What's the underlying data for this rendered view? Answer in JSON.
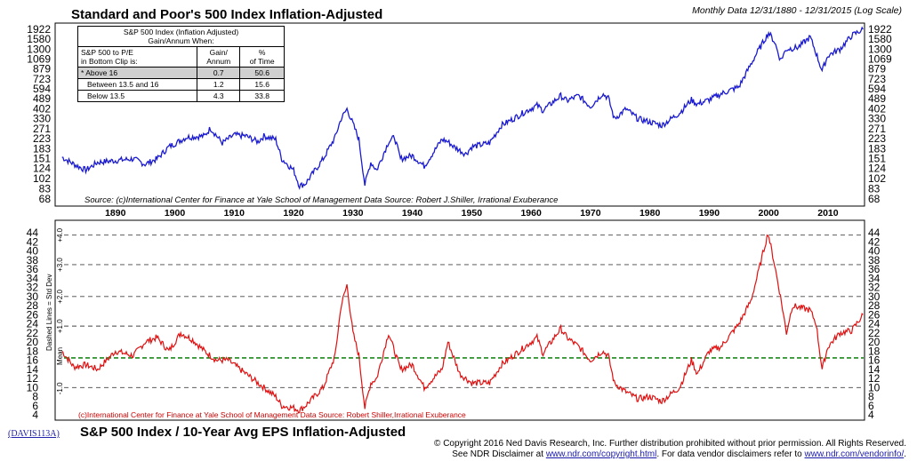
{
  "top": {
    "title": "Standard and Poor's 500 Index Inflation-Adjusted",
    "subtitle": "Monthly Data 12/31/1880 - 12/31/2015 (Log Scale)",
    "source": "Source: (c)International Center for Finance at Yale School of Management Data Source: Robert J.Shiller, Irrational Exuberance",
    "y_ticks": [
      "1922",
      "1580",
      "1300",
      "1069",
      "879",
      "723",
      "594",
      "489",
      "402",
      "330",
      "271",
      "223",
      "183",
      "151",
      "124",
      "102",
      "83",
      "68"
    ],
    "table": {
      "title_line1": "S&P 500 Index (Inflation Adjusted)",
      "title_line2": "Gain/Annum When:",
      "col1_line1": "S&P 500 to P/E",
      "col1_line2": "in Bottom Clip is:",
      "col2_line1": "Gain/",
      "col2_line2": "Annum",
      "col3_line1": "%",
      "col3_line2": "of Time",
      "rows": [
        {
          "label": "* Above 16",
          "gain": "0.7",
          "pct": "50.6"
        },
        {
          "label": "Between 13.5 and 16",
          "gain": "1.2",
          "pct": "15.6"
        },
        {
          "label": "Below 13.5",
          "gain": "4.3",
          "pct": "33.8"
        }
      ]
    }
  },
  "x_ticks": [
    "1890",
    "1900",
    "1910",
    "1920",
    "1930",
    "1940",
    "1950",
    "1960",
    "1970",
    "1980",
    "1990",
    "2000",
    "2010"
  ],
  "bottom": {
    "source": "(c)International Center for Finance at Yale School of Management Data Source: Robert Shiller,Irrational Exuberance",
    "y_ticks": [
      "44",
      "42",
      "40",
      "38",
      "36",
      "34",
      "32",
      "30",
      "28",
      "26",
      "24",
      "22",
      "20",
      "18",
      "16",
      "14",
      "12",
      "10",
      "8",
      "6",
      "4"
    ],
    "y_axis_label": "Dashed Lines = Std Dev",
    "band_labels": [
      "+4.0",
      "+3.0",
      "+2.0",
      "+1.0",
      "Mean",
      "-1.0"
    ],
    "title": "S&P 500 Index / 10-Year Avg EPS Inflation-Adjusted",
    "code": "(DAVIS113A)"
  },
  "footer": {
    "copyright": "© Copyright 2016 Ned Davis Research, Inc.  Further distribution prohibited without prior permission.  All Rights Reserved.",
    "disclaimer_pre": "See NDR Disclaimer at ",
    "link1": "www.ndr.com/copyright.html",
    "disclaimer_mid": ". For data vendor disclaimers refer to ",
    "link2": "www.ndr.com/vendorinfo/",
    "disclaimer_end": "."
  },
  "colors": {
    "price": "#1a1ad0",
    "pe": "#e01010",
    "mean": "#1a8a1a",
    "dash": "#444444"
  },
  "chart_data": [
    {
      "type": "line",
      "title": "Standard and Poor's 500 Index Inflation-Adjusted",
      "scale": "log",
      "ylim": [
        68,
        1922
      ],
      "xlim": [
        1880,
        2016
      ],
      "series": [
        {
          "x": [
            1881,
            1883,
            1885,
            1887,
            1890,
            1893,
            1895,
            1897,
            1899,
            1902,
            1905,
            1906,
            1908,
            1910,
            1912,
            1914,
            1915,
            1917,
            1918,
            1920,
            1921,
            1922,
            1925,
            1927,
            1928,
            1929,
            1930,
            1931,
            1932,
            1933,
            1934,
            1936,
            1937,
            1938,
            1940,
            1942,
            1945,
            1946,
            1947,
            1949,
            1950,
            1953,
            1955,
            1957,
            1959,
            1961,
            1962,
            1965,
            1966,
            1968,
            1970,
            1972,
            1973,
            1974,
            1976,
            1978,
            1980,
            1982,
            1985,
            1987,
            1988,
            1990,
            1992,
            1995,
            1998,
            2000,
            2001,
            2002,
            2003,
            2005,
            2007,
            2008,
            2009,
            2010,
            2012,
            2014,
            2015.9
          ],
          "values": [
            155,
            135,
            120,
            140,
            145,
            150,
            135,
            150,
            190,
            230,
            235,
            275,
            205,
            240,
            235,
            210,
            235,
            220,
            150,
            120,
            88,
            92,
            150,
            230,
            330,
            400,
            300,
            220,
            90,
            140,
            120,
            210,
            230,
            150,
            160,
            130,
            220,
            210,
            190,
            165,
            190,
            205,
            290,
            330,
            380,
            430,
            390,
            520,
            470,
            520,
            420,
            540,
            500,
            330,
            400,
            330,
            310,
            290,
            370,
            480,
            440,
            480,
            540,
            620,
            1200,
            1800,
            1500,
            1050,
            1300,
            1350,
            1650,
            1200,
            850,
            1150,
            1300,
            1700,
            1922
          ]
        }
      ]
    },
    {
      "type": "line",
      "title": "S&P 500 Index / 10-Year Avg EPS Inflation-Adjusted",
      "ylim": [
        4,
        45
      ],
      "xlim": [
        1880,
        2016
      ],
      "bands": [
        {
          "label": "+4.0",
          "value": 43.5
        },
        {
          "label": "+3.0",
          "value": 37
        },
        {
          "label": "+2.0",
          "value": 30
        },
        {
          "label": "+1.0",
          "value": 23.5
        },
        {
          "label": "Mean",
          "value": 16.5
        },
        {
          "label": "-1.0",
          "value": 10
        }
      ],
      "series": [
        {
          "x": [
            1881,
            1883,
            1885,
            1887,
            1890,
            1893,
            1895,
            1897,
            1899,
            1901,
            1903,
            1905,
            1907,
            1909,
            1911,
            1913,
            1915,
            1917,
            1918,
            1920,
            1921,
            1922,
            1925,
            1927,
            1928,
            1929,
            1930,
            1931,
            1932,
            1933,
            1934,
            1936,
            1938,
            1940,
            1942,
            1945,
            1946,
            1948,
            1949,
            1950,
            1953,
            1955,
            1957,
            1959,
            1961,
            1962,
            1965,
            1966,
            1968,
            1970,
            1972,
            1973,
            1974,
            1976,
            1978,
            1980,
            1982,
            1985,
            1987,
            1988,
            1990,
            1992,
            1995,
            1997,
            1998,
            1999.9,
            2001,
            2002,
            2003,
            2004,
            2007,
            2008,
            2009,
            2010,
            2012,
            2014,
            2015.9
          ],
          "values": [
            18,
            14.5,
            15,
            14,
            18,
            17,
            20,
            21,
            18,
            22,
            20.5,
            18,
            16,
            16,
            14,
            12,
            10,
            8,
            6,
            5.5,
            5,
            6,
            10,
            17,
            28,
            32.5,
            22,
            17,
            5.5,
            11,
            12,
            22,
            14,
            15,
            10,
            14,
            20,
            13,
            12,
            11,
            11,
            15,
            17,
            19,
            21,
            17.5,
            23,
            21,
            19,
            16,
            18,
            17,
            11,
            9,
            7.5,
            8,
            7,
            10,
            16,
            13,
            18,
            19,
            24,
            29,
            34,
            44,
            37,
            30,
            22,
            28,
            27,
            24,
            14,
            19,
            22,
            22.5,
            26
          ]
        }
      ]
    }
  ]
}
